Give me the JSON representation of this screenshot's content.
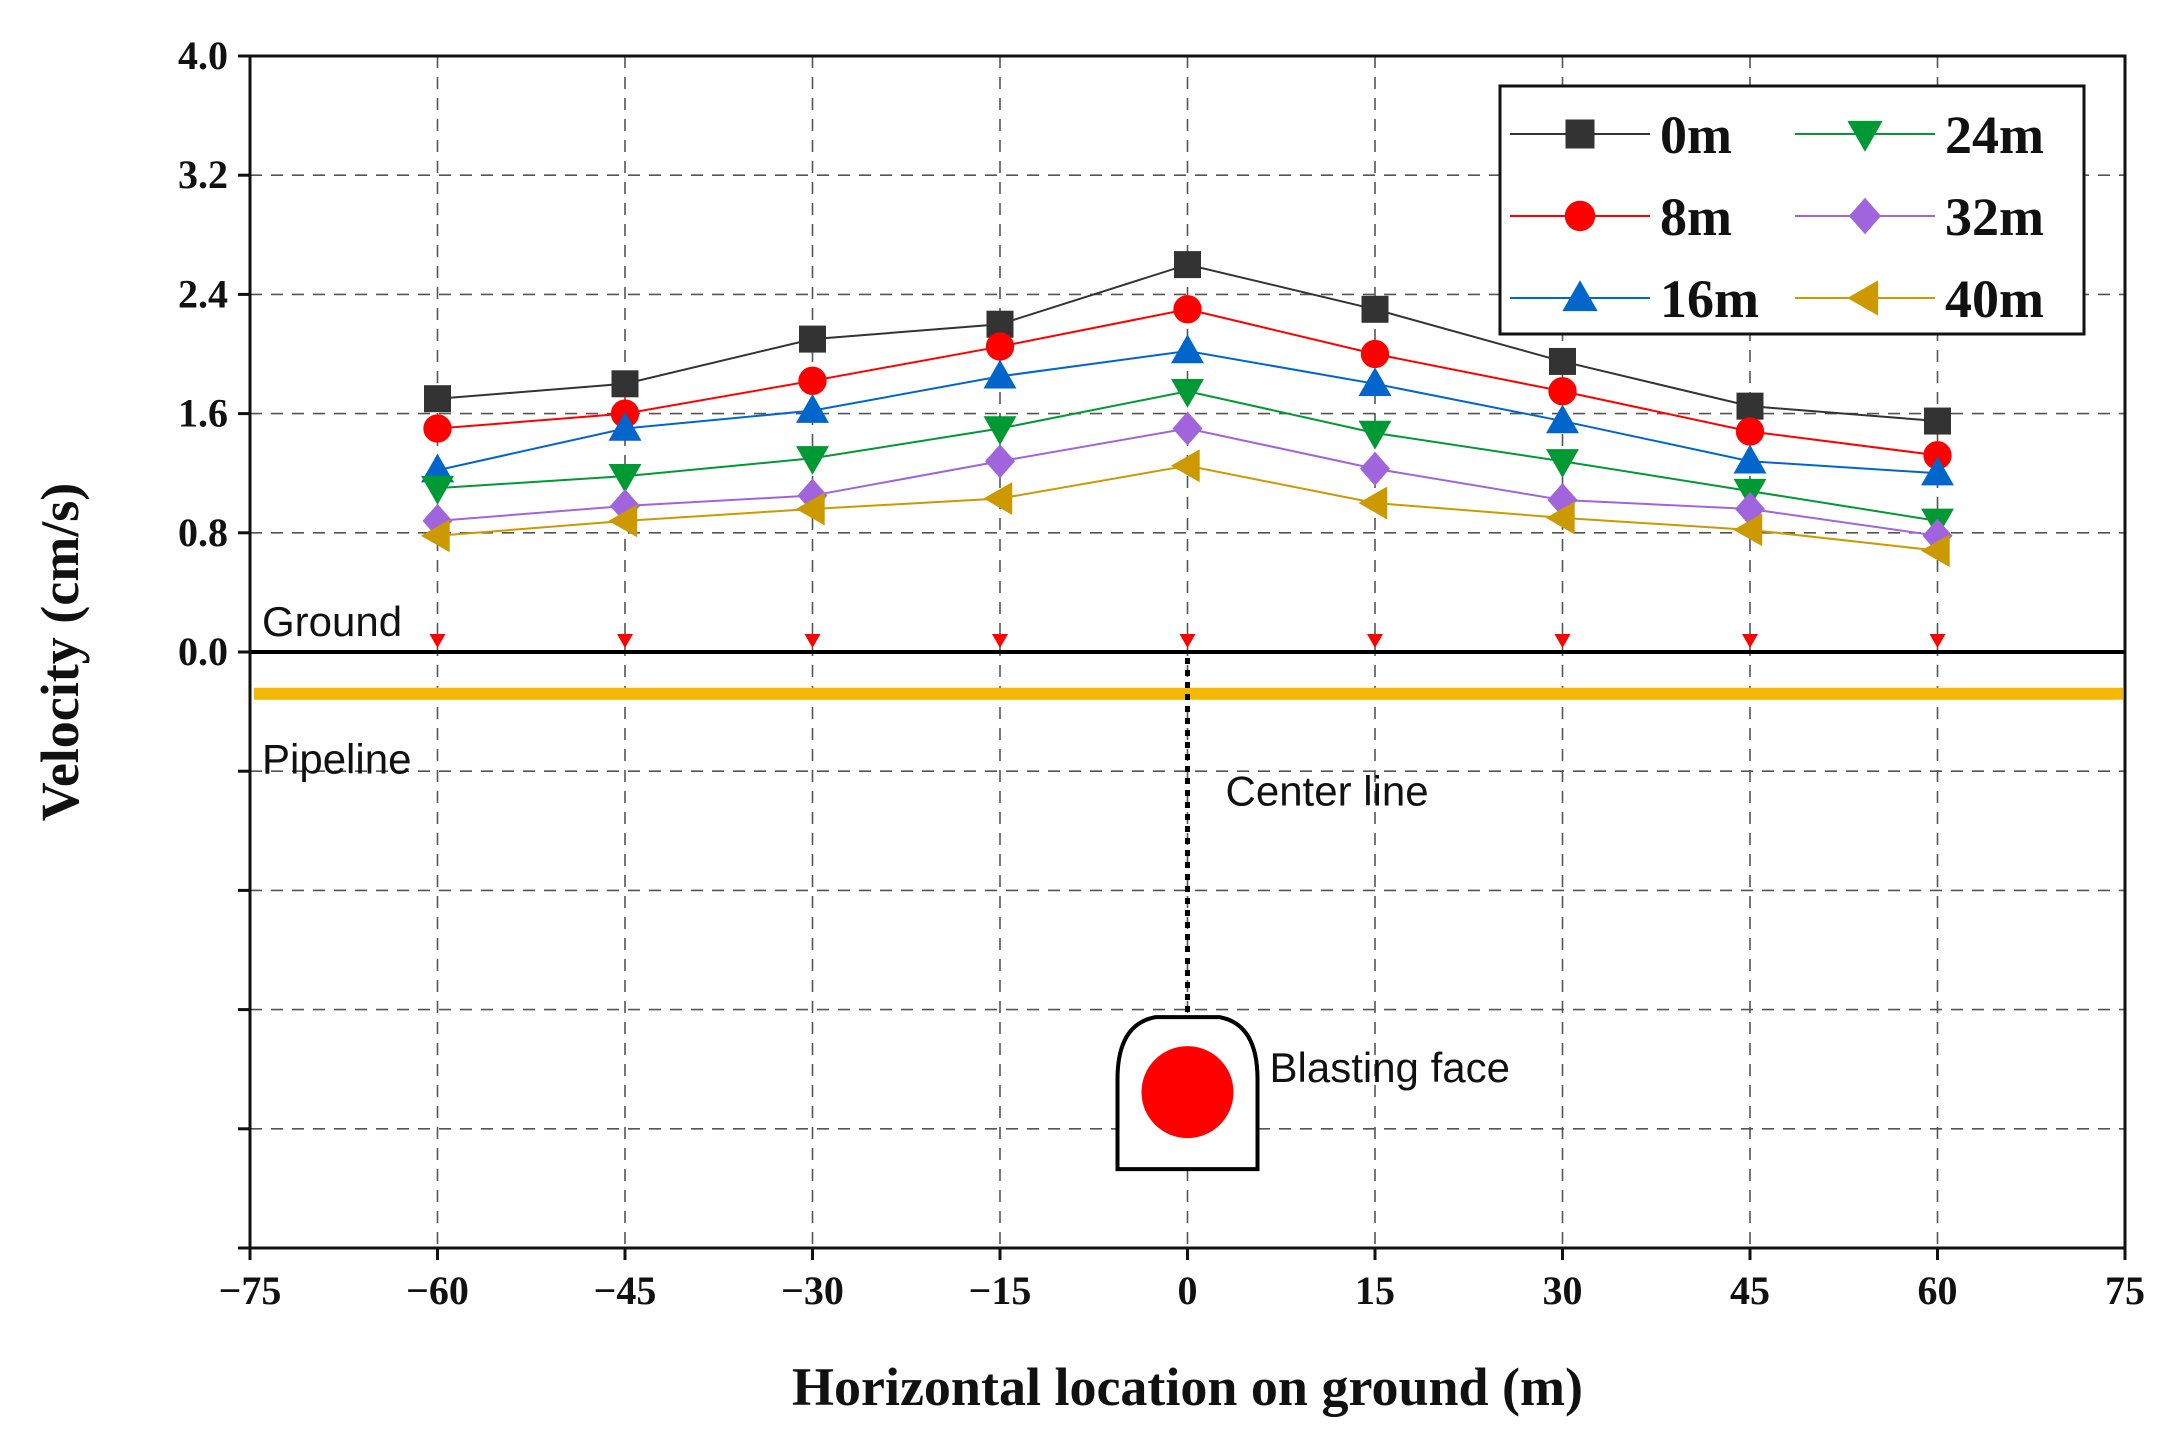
{
  "chart_data": {
    "type": "line",
    "title": "",
    "xlabel": "Horizontal location on ground (m)",
    "ylabel": "Velocity (cm/s)",
    "xlim": [
      -75,
      75
    ],
    "ylim": [
      -4.0,
      4.0
    ],
    "x_ticks": [
      -75,
      -60,
      -45,
      -30,
      -15,
      0,
      15,
      30,
      45,
      60,
      75
    ],
    "x_tick_labels": [
      "−75",
      "−60",
      "−45",
      "−30",
      "−15",
      "0",
      "15",
      "30",
      "45",
      "60",
      "75"
    ],
    "y_ticks": [
      0.0,
      0.8,
      1.6,
      2.4,
      3.2,
      4.0
    ],
    "y_tick_labels": [
      "0.0",
      "0.8",
      "1.6",
      "2.4",
      "3.2",
      "4.0"
    ],
    "grid_y_values": [
      -4.0,
      -3.2,
      -2.4,
      -1.6,
      -0.8,
      0.0,
      0.8,
      1.6,
      2.4,
      3.2,
      4.0
    ],
    "grid": true,
    "legend_position": "top-right",
    "x": [
      -60,
      -45,
      -30,
      -15,
      0,
      15,
      30,
      45,
      60
    ],
    "series": [
      {
        "name": "0m",
        "color": "#333333",
        "marker": "square",
        "values": [
          1.7,
          1.8,
          2.1,
          2.2,
          2.6,
          2.3,
          1.95,
          1.65,
          1.55
        ]
      },
      {
        "name": "8m",
        "color": "#ff0000",
        "marker": "circle",
        "values": [
          1.5,
          1.6,
          1.82,
          2.05,
          2.3,
          2.0,
          1.75,
          1.48,
          1.32
        ]
      },
      {
        "name": "16m",
        "color": "#0066cc",
        "marker": "triangle-up",
        "values": [
          1.22,
          1.5,
          1.62,
          1.85,
          2.02,
          1.8,
          1.55,
          1.28,
          1.2
        ]
      },
      {
        "name": "24m",
        "color": "#009933",
        "marker": "triangle-down",
        "values": [
          1.1,
          1.18,
          1.3,
          1.5,
          1.75,
          1.47,
          1.28,
          1.08,
          0.88
        ]
      },
      {
        "name": "32m",
        "color": "#a064dc",
        "marker": "diamond",
        "values": [
          0.88,
          0.98,
          1.05,
          1.28,
          1.5,
          1.23,
          1.02,
          0.96,
          0.78
        ]
      },
      {
        "name": "40m",
        "color": "#cc9900",
        "marker": "triangle-left",
        "values": [
          0.78,
          0.88,
          0.96,
          1.03,
          1.25,
          1.0,
          0.9,
          0.82,
          0.68
        ]
      }
    ],
    "annotations": {
      "ground_label": "Ground",
      "pipeline_label": "Pipeline",
      "center_line_label": "Center line",
      "blasting_face_label": "Blasting face",
      "ground_level_value": 0.0,
      "pipeline_level_value": -0.28,
      "blasting_face_center_value": -2.9,
      "measurement_points_x": [
        -60,
        -45,
        -30,
        -15,
        0,
        15,
        30,
        45,
        60
      ],
      "pipeline_color": "#f5b800",
      "marker_color": "#ff0000"
    }
  }
}
